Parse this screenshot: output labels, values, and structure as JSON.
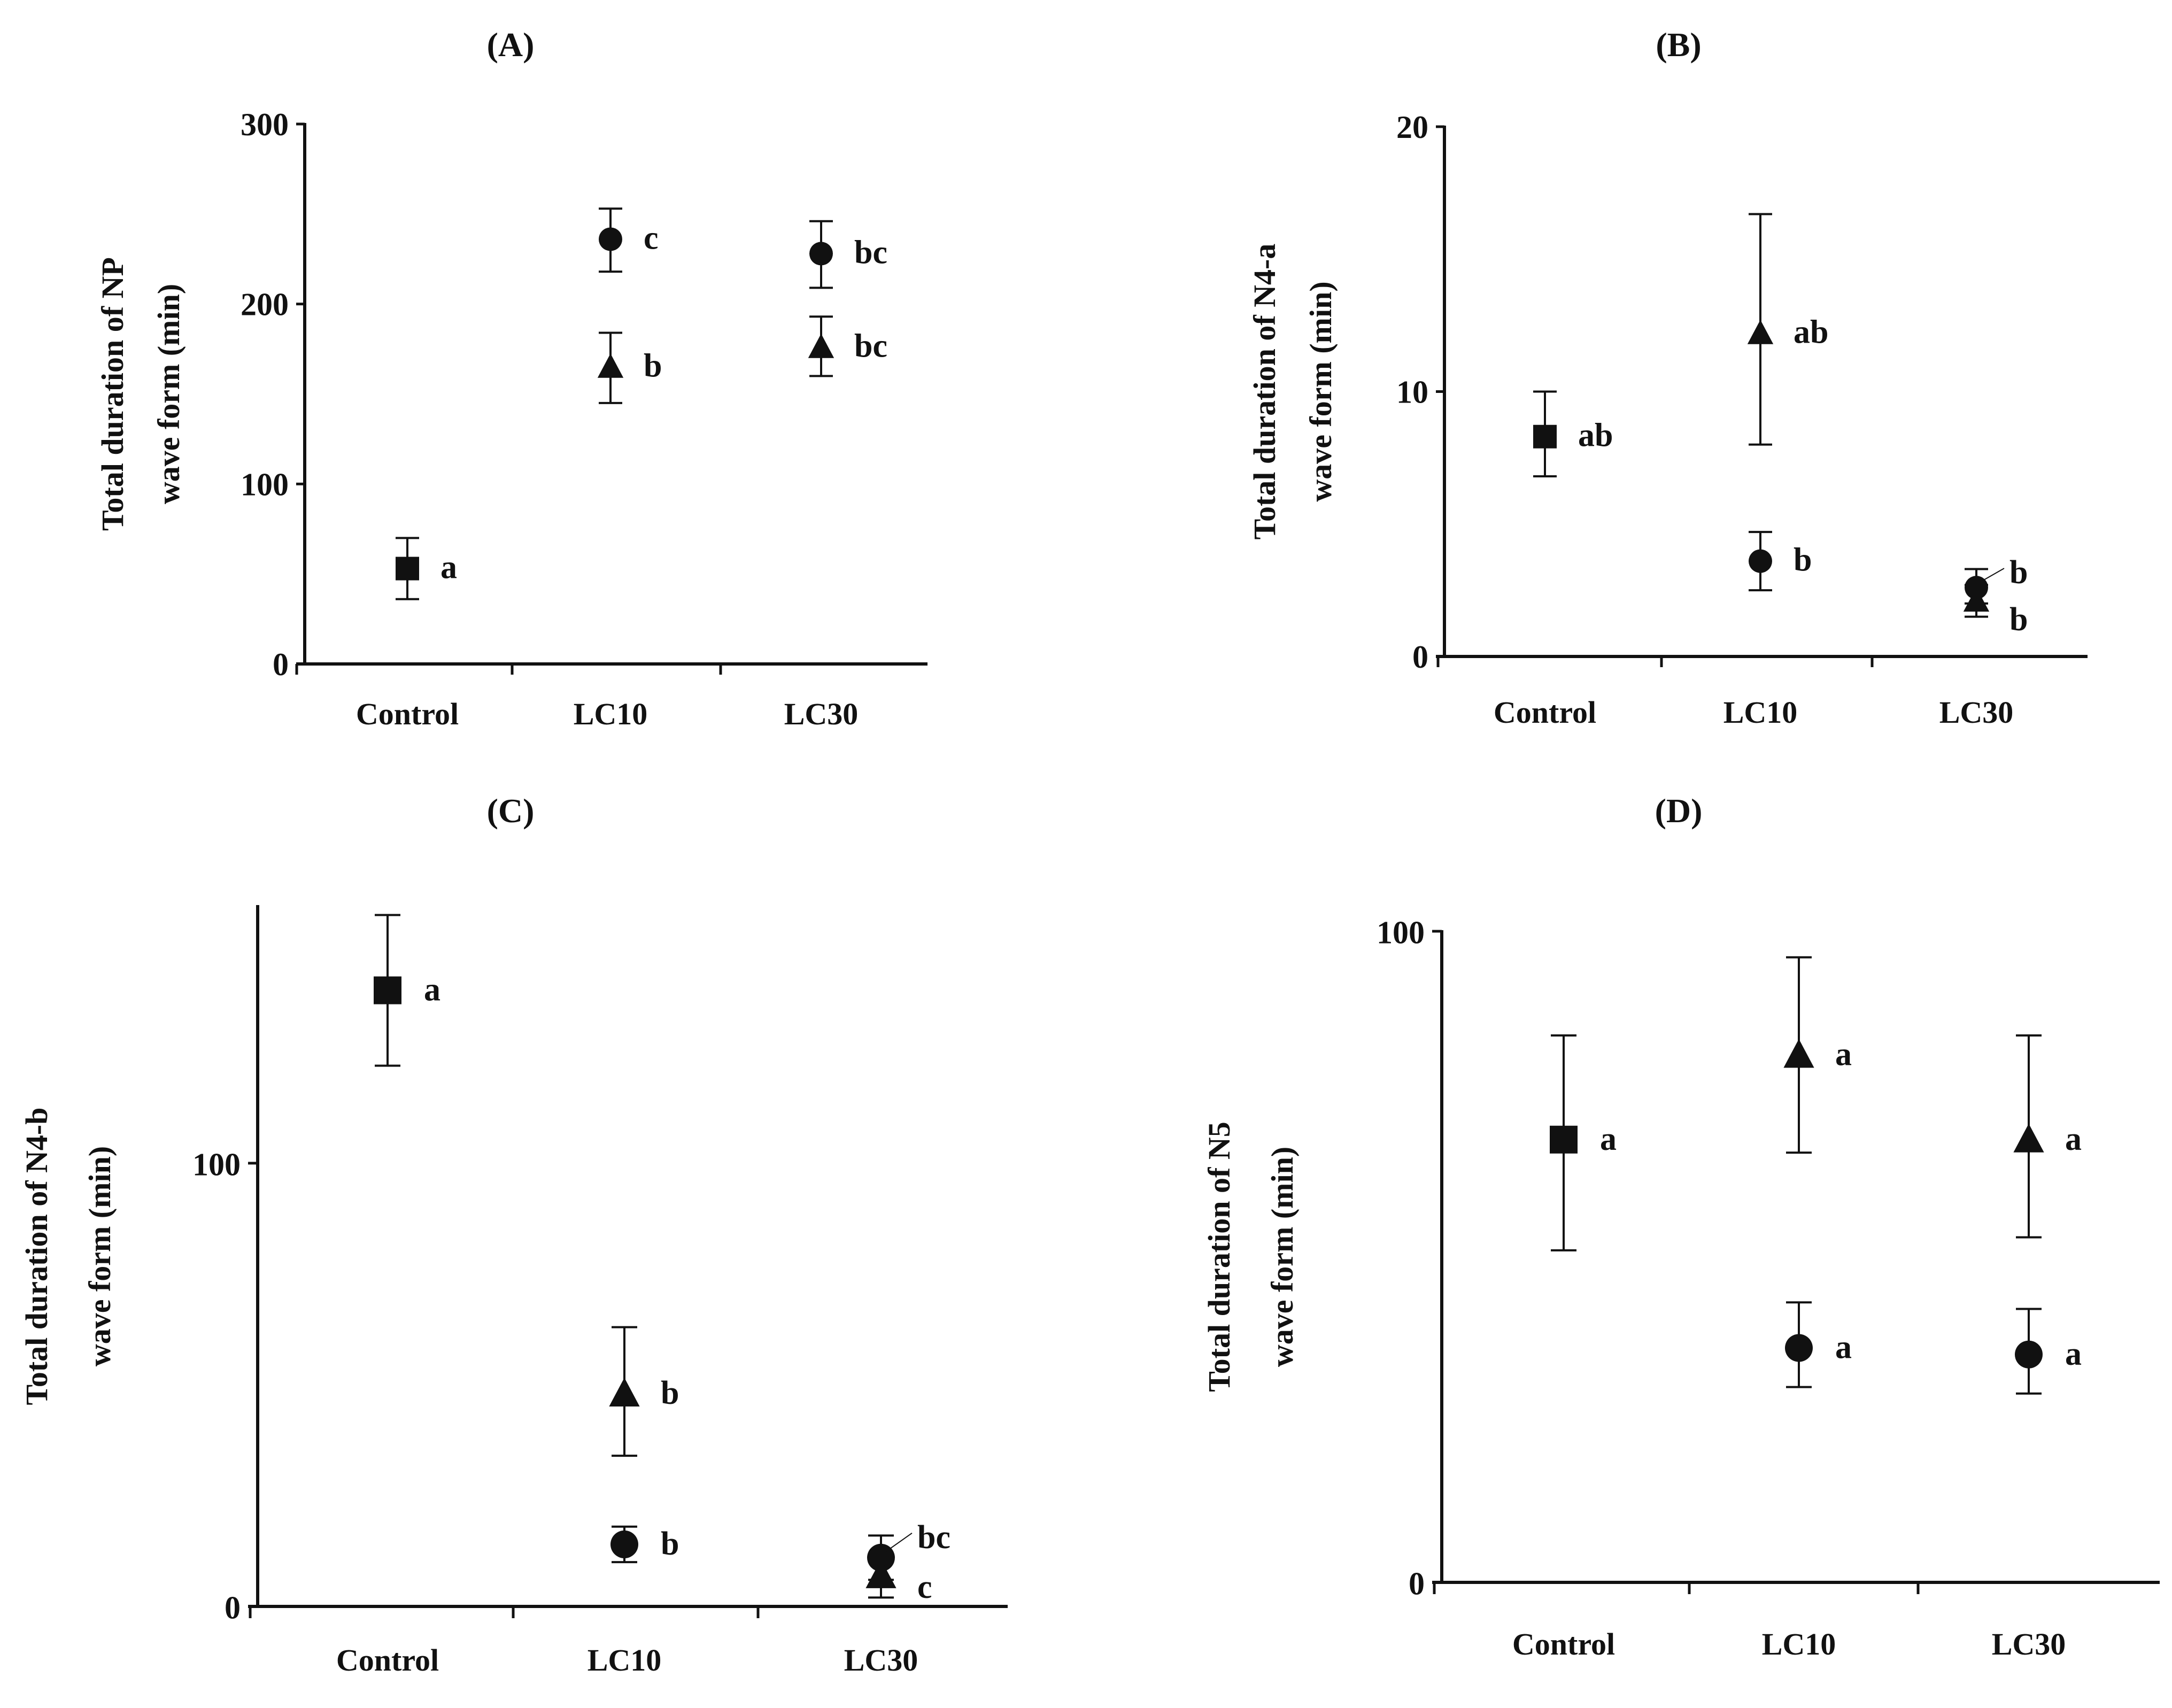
{
  "colors": {
    "ink": "#111111",
    "background": "#ffffff"
  },
  "chart_data": [
    {
      "id": "A",
      "panel_label": "(A)",
      "type": "scatter",
      "ylabel_lines": [
        "Total duration of NP",
        "wave form (min)"
      ],
      "categories": [
        "Control",
        "LC10",
        "LC30"
      ],
      "ylim": [
        0,
        300
      ],
      "yticks": [
        0,
        100,
        200,
        300
      ],
      "series": [
        {
          "name": "Control",
          "marker": "square",
          "points": [
            {
              "cat": 0,
              "y": 53,
              "lo": 36,
              "hi": 70,
              "sig": "a"
            }
          ]
        },
        {
          "name": "circle",
          "marker": "circle",
          "points": [
            {
              "cat": 1,
              "y": 236,
              "lo": 218,
              "hi": 253,
              "sig": "c"
            },
            {
              "cat": 2,
              "y": 228,
              "lo": 209,
              "hi": 246,
              "sig": "bc"
            }
          ]
        },
        {
          "name": "triangle",
          "marker": "triangle",
          "points": [
            {
              "cat": 1,
              "y": 165,
              "lo": 145,
              "hi": 184,
              "sig": "b"
            },
            {
              "cat": 2,
              "y": 176,
              "lo": 160,
              "hi": 193,
              "sig": "bc"
            }
          ]
        }
      ]
    },
    {
      "id": "B",
      "panel_label": "(B)",
      "type": "scatter",
      "ylabel_lines": [
        "Total duration of N4-a",
        "wave form (min)"
      ],
      "categories": [
        "Control",
        "LC10",
        "LC30"
      ],
      "ylim": [
        0,
        20
      ],
      "yticks": [
        0,
        10,
        20
      ],
      "series": [
        {
          "name": "Control",
          "marker": "square",
          "points": [
            {
              "cat": 0,
              "y": 8.3,
              "lo": 6.8,
              "hi": 10,
              "sig": "ab"
            }
          ]
        },
        {
          "name": "circle",
          "marker": "circle",
          "points": [
            {
              "cat": 1,
              "y": 3.6,
              "lo": 2.5,
              "hi": 4.7,
              "sig": "b"
            },
            {
              "cat": 2,
              "y": 2.6,
              "lo": 2.0,
              "hi": 3.3,
              "sig": "b"
            }
          ]
        },
        {
          "name": "triangle",
          "marker": "triangle",
          "points": [
            {
              "cat": 1,
              "y": 12.2,
              "lo": 8.0,
              "hi": 16.7,
              "sig": "ab"
            },
            {
              "cat": 2,
              "y": 2.1,
              "lo": 1.5,
              "hi": 2.7,
              "sig": "b"
            }
          ]
        }
      ]
    },
    {
      "id": "C",
      "panel_label": "(C)",
      "type": "scatter",
      "ylabel_lines": [
        "Total duration of N4-b",
        "wave form (min)"
      ],
      "categories": [
        "Control",
        "LC10",
        "LC30"
      ],
      "ylim": [
        0,
        158
      ],
      "yticks": [
        0,
        100
      ],
      "series": [
        {
          "name": "Control",
          "marker": "square",
          "points": [
            {
              "cat": 0,
              "y": 139,
              "lo": 122,
              "hi": 156,
              "sig": "a"
            }
          ]
        },
        {
          "name": "circle",
          "marker": "circle",
          "points": [
            {
              "cat": 1,
              "y": 14,
              "lo": 10,
              "hi": 18,
              "sig": "b"
            },
            {
              "cat": 2,
              "y": 11,
              "lo": 6,
              "hi": 16,
              "sig": "bc"
            }
          ]
        },
        {
          "name": "triangle",
          "marker": "triangle",
          "points": [
            {
              "cat": 1,
              "y": 48,
              "lo": 34,
              "hi": 63,
              "sig": "b"
            },
            {
              "cat": 2,
              "y": 7,
              "lo": 2,
              "hi": 12,
              "sig": "c"
            }
          ]
        }
      ]
    },
    {
      "id": "D",
      "panel_label": "(D)",
      "type": "scatter",
      "ylabel_lines": [
        "Total duration of N5",
        "wave form (min)"
      ],
      "categories": [
        "Control",
        "LC10",
        "LC30"
      ],
      "ylim": [
        0,
        100
      ],
      "yticks": [
        0,
        100
      ],
      "series": [
        {
          "name": "Control",
          "marker": "square",
          "points": [
            {
              "cat": 0,
              "y": 68,
              "lo": 51,
              "hi": 84,
              "sig": "a"
            }
          ]
        },
        {
          "name": "circle",
          "marker": "circle",
          "points": [
            {
              "cat": 1,
              "y": 36,
              "lo": 30,
              "hi": 43,
              "sig": "a"
            },
            {
              "cat": 2,
              "y": 35,
              "lo": 29,
              "hi": 42,
              "sig": "a"
            }
          ]
        },
        {
          "name": "triangle",
          "marker": "triangle",
          "points": [
            {
              "cat": 1,
              "y": 81,
              "lo": 66,
              "hi": 96,
              "sig": "a"
            },
            {
              "cat": 2,
              "y": 68,
              "lo": 53,
              "hi": 84,
              "sig": "a"
            }
          ]
        }
      ]
    }
  ]
}
